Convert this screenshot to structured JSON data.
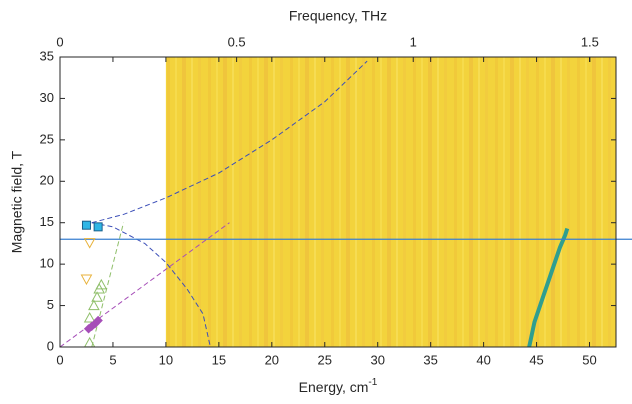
{
  "chart_data": {
    "type": "scatter",
    "xlabel": "Energy, cm",
    "xlabel_sup": "-1",
    "ylabel": "Magnetic field, T",
    "xlim": [
      0,
      52.5
    ],
    "xticks": [
      0,
      5,
      10,
      15,
      20,
      25,
      30,
      35,
      40,
      45,
      50
    ],
    "ylim": [
      0,
      35
    ],
    "yticks": [
      0,
      5,
      10,
      15,
      20,
      25,
      30,
      35
    ],
    "top_axis": {
      "label": "Frequency, THz",
      "lim": [
        0,
        1.574
      ],
      "ticks": [
        0,
        0.5,
        1,
        1.5
      ]
    },
    "heatmap": {
      "x": [
        10,
        52.5
      ],
      "y": [
        0,
        35
      ],
      "color": "#f3d33c"
    },
    "hline": {
      "y": 13,
      "color": "#3a7fd0"
    },
    "lines": [
      {
        "color": "#3c4fb8",
        "dash": true,
        "width": 1,
        "x": [
          3,
          6,
          10,
          15,
          20,
          25,
          29
        ],
        "y": [
          15,
          16,
          18,
          21,
          25,
          29.6,
          34.5
        ]
      },
      {
        "color": "#3c4fb8",
        "dash": true,
        "width": 1,
        "x": [
          3,
          5,
          8,
          10,
          12,
          13.5,
          14.2
        ],
        "y": [
          15,
          14.5,
          12.5,
          10.2,
          7,
          4,
          0
        ]
      },
      {
        "color": "#a64fb8",
        "dash": true,
        "width": 1,
        "x": [
          0,
          16
        ],
        "y": [
          0,
          15
        ]
      },
      {
        "color": "#8fbf6a",
        "dash": true,
        "width": 1,
        "x": [
          3,
          6
        ],
        "y": [
          0,
          15
        ]
      },
      {
        "color": "#2f9e8f",
        "dash": false,
        "width": 4,
        "x": [
          44.3,
          44.8,
          45.6,
          46.4,
          47.2,
          47.7,
          47.9
        ],
        "y": [
          0,
          3,
          6,
          9,
          12,
          13.5,
          14.3
        ]
      }
    ],
    "markers": [
      {
        "shape": "square",
        "color": "#2fb6e6",
        "x": [
          2.5,
          3.6
        ],
        "y": [
          14.7,
          14.5
        ]
      },
      {
        "shape": "triangle-down",
        "color": "#e8b23a",
        "x": [
          2.8,
          2.5
        ],
        "y": [
          12.6,
          8.2
        ]
      },
      {
        "shape": "triangle-up",
        "color": "#8fbf6a",
        "x": [
          2.8,
          2.8,
          3.2,
          3.5,
          3.7,
          3.9
        ],
        "y": [
          0.5,
          3.5,
          5,
          6,
          7,
          7.5
        ]
      },
      {
        "shape": "diamond",
        "color": "#a64fb8",
        "x": [
          2.7,
          3,
          3.3,
          3.6
        ],
        "y": [
          2.2,
          2.5,
          2.8,
          3.2
        ]
      }
    ]
  }
}
